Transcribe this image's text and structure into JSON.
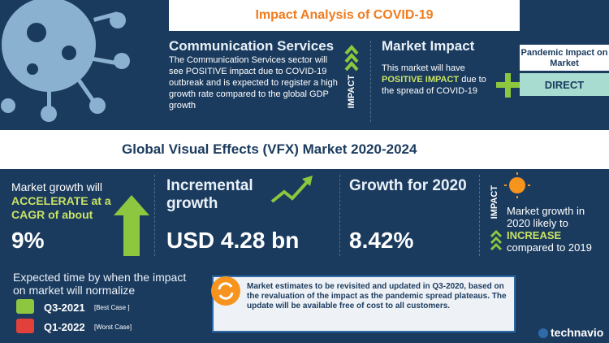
{
  "header": {
    "title": "Impact Analysis of COVID-19"
  },
  "sector": {
    "title": "Communication Services",
    "text": "The Communication Services sector will see POSITIVE  impact due to COVID-19 outbreak and is expected to register a high growth rate compared to the global GDP growth",
    "label": "IMPACT"
  },
  "market_impact": {
    "title": "Market Impact",
    "text_before": "This market will have",
    "highlight": "POSITIVE IMPACT",
    "text_after": "due to the spread of COVID-19"
  },
  "pandemic": {
    "title": "Pandemic Impact on Market",
    "value": "DIRECT"
  },
  "report": {
    "title": "Global Visual Effects (VFX) Market 2020-2024"
  },
  "metrics": [
    {
      "text_before": "Market growth will",
      "highlight": "ACCELERATE at a CAGR of about",
      "value": "9%"
    },
    {
      "title": "Incremental growth",
      "value": "USD 4.28 bn"
    },
    {
      "title": "Growth for 2020",
      "value": "8.42%"
    }
  ],
  "outlook": {
    "label": "IMPACT",
    "text_before": "Market growth in 2020 likely to",
    "highlight": "INCREASE",
    "text_after": "compared to 2019"
  },
  "normalization": {
    "title": "Expected time by when the impact on market will normalize",
    "best": {
      "period": "Q3-2021",
      "label": "[Best Case ]"
    },
    "worst": {
      "period": "Q1-2022",
      "label": "[Worst Case]"
    }
  },
  "note": "Market estimates to be revisited and updated in Q3-2020, based on the revaluation of the impact as the pandemic spread plateaus. The update will be available free of cost to all customers.",
  "brand": "technavio"
}
